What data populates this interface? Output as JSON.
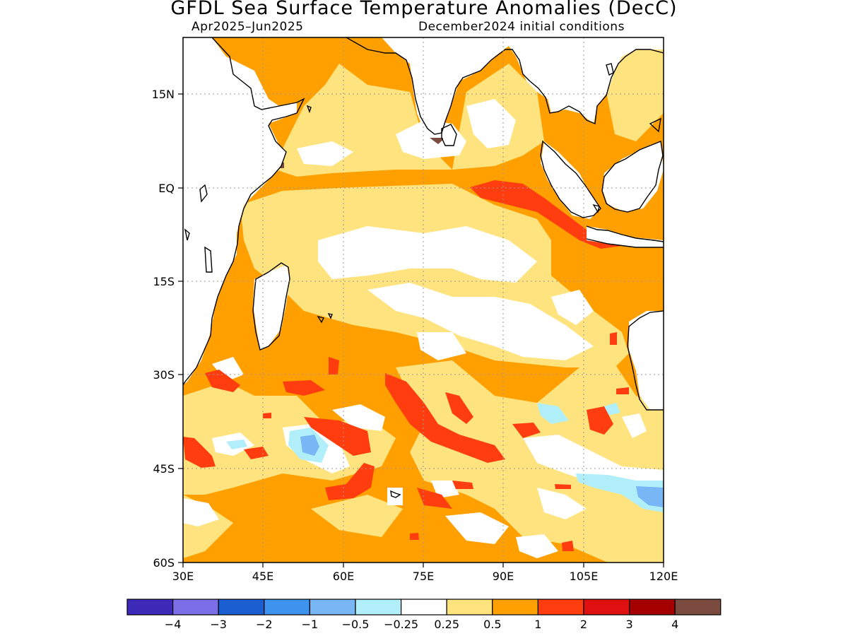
{
  "title": "GFDL Sea Surface Temperature Anomalies (DecC)",
  "period": "Apr2025–Jun2025",
  "initial_conditions": "December2024 initial conditions",
  "lon_ticks": [
    "30E",
    "45E",
    "60E",
    "75E",
    "90E",
    "105E",
    "120E"
  ],
  "lat_ticks": [
    "15N",
    "EQ",
    "15S",
    "30S",
    "45S",
    "60S"
  ],
  "colorbar": {
    "colors": [
      "#3d2ab8",
      "#7c6ee6",
      "#1a5ed1",
      "#3e93ef",
      "#78b6f5",
      "#b0eff9",
      "#ffffff",
      "#ffe37f",
      "#ffa000",
      "#ff3d0f",
      "#df1010",
      "#a50000",
      "#7a4b3e"
    ],
    "labels": [
      "−4",
      "−3",
      "−2",
      "−1",
      "−0.5",
      "−0.25",
      "0.25",
      "0.5",
      "1",
      "2",
      "3",
      "4"
    ]
  },
  "map_extent": {
    "lon": [
      30,
      120
    ],
    "lat": [
      -60,
      24
    ]
  }
}
